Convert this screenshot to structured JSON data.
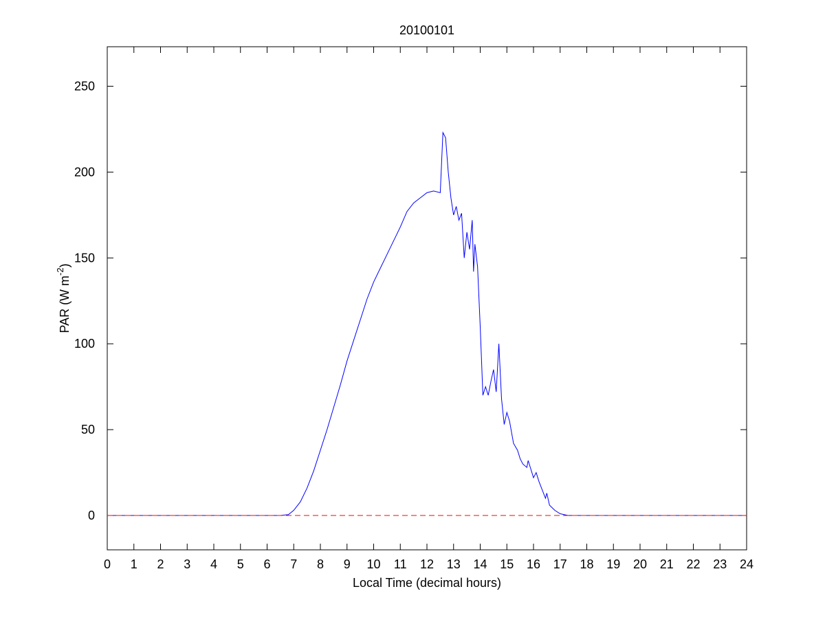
{
  "chart_data": {
    "type": "line",
    "title": "20100101",
    "xlabel": "Local Time (decimal hours)",
    "ylabel": [
      "PAR (W m",
      "-2",
      ")"
    ],
    "xlim": [
      0,
      24
    ],
    "xticks": [
      0,
      1,
      2,
      3,
      4,
      5,
      6,
      7,
      8,
      9,
      10,
      11,
      12,
      13,
      14,
      15,
      16,
      17,
      18,
      19,
      20,
      21,
      22,
      23,
      24
    ],
    "ylim": [
      -20,
      273
    ],
    "yticks": [
      0,
      50,
      100,
      150,
      200,
      250
    ],
    "series": [
      {
        "color": "#0000ff",
        "x": [
          0,
          6.5,
          6.8,
          7,
          7.25,
          7.5,
          7.75,
          8,
          8.25,
          8.5,
          8.75,
          9,
          9.25,
          9.5,
          9.75,
          10,
          10.25,
          10.5,
          10.75,
          11,
          11.25,
          11.5,
          11.75,
          12,
          12.25,
          12.5,
          12.6,
          12.7,
          12.8,
          12.9,
          13.0,
          13.1,
          13.2,
          13.3,
          13.4,
          13.5,
          13.6,
          13.7,
          13.75,
          13.8,
          13.9,
          14.0,
          14.1,
          14.2,
          14.3,
          14.4,
          14.5,
          14.6,
          14.7,
          14.8,
          14.9,
          15.0,
          15.1,
          15.25,
          15.4,
          15.5,
          15.6,
          15.75,
          15.8,
          16,
          16.1,
          16.2,
          16.35,
          16.45,
          16.5,
          16.6,
          16.8,
          17,
          17.3,
          24
        ],
        "values": [
          0,
          0,
          0.5,
          3,
          8,
          16,
          26,
          38,
          50,
          63,
          76,
          90,
          102,
          114,
          126,
          136,
          144,
          152,
          160,
          168,
          177,
          182,
          185,
          188,
          189,
          188,
          223,
          220,
          200,
          185,
          175,
          180,
          172,
          176,
          150,
          165,
          155,
          172,
          142,
          158,
          145,
          110,
          70,
          75,
          70,
          78,
          85,
          72,
          100,
          68,
          53,
          60,
          55,
          42,
          38,
          33,
          30,
          28,
          32,
          22,
          25,
          20,
          14,
          10,
          13,
          6,
          3,
          1,
          0,
          0
        ]
      },
      {
        "color": "#ff0000",
        "dash": true,
        "x": [
          0,
          24
        ],
        "values": [
          0,
          0
        ]
      }
    ]
  }
}
